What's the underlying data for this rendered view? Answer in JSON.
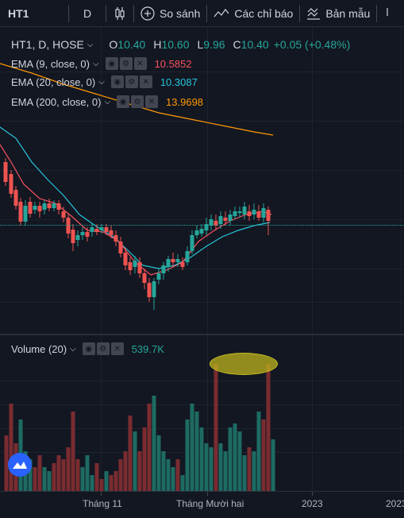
{
  "toolbar": {
    "symbol": "HT1",
    "interval": "D",
    "compare_label": "So sánh",
    "indicators_label": "Các chỉ báo",
    "templates_label": "Bản mẫu"
  },
  "legend": {
    "symbol": "HT1, D, HOSE",
    "open_label": "O",
    "open_value": "10.40",
    "high_label": "H",
    "high_value": "10.60",
    "low_label": "L",
    "low_value": "9.96",
    "close_label": "C",
    "close_value": "10.40",
    "change": "+0.05 (+0.48%)"
  },
  "indicators": [
    {
      "label": "EMA (9, close, 0)",
      "value": "10.5852",
      "color": "#f7525f"
    },
    {
      "label": "EMA (20, close, 0)",
      "value": "10.3087",
      "color": "#26c6da"
    },
    {
      "label": "EMA (200, close, 0)",
      "value": "13.9698",
      "color": "#ff9800"
    }
  ],
  "volume": {
    "label": "Volume (20)",
    "value": "539.7K",
    "color": "#26a69a"
  },
  "xaxis": {
    "labels": [
      "Tháng 11",
      "Tháng Mười hai",
      "2023",
      "2023"
    ]
  },
  "colors": {
    "up": "#26a69a",
    "down": "#ef5350",
    "background": "#131722"
  }
}
